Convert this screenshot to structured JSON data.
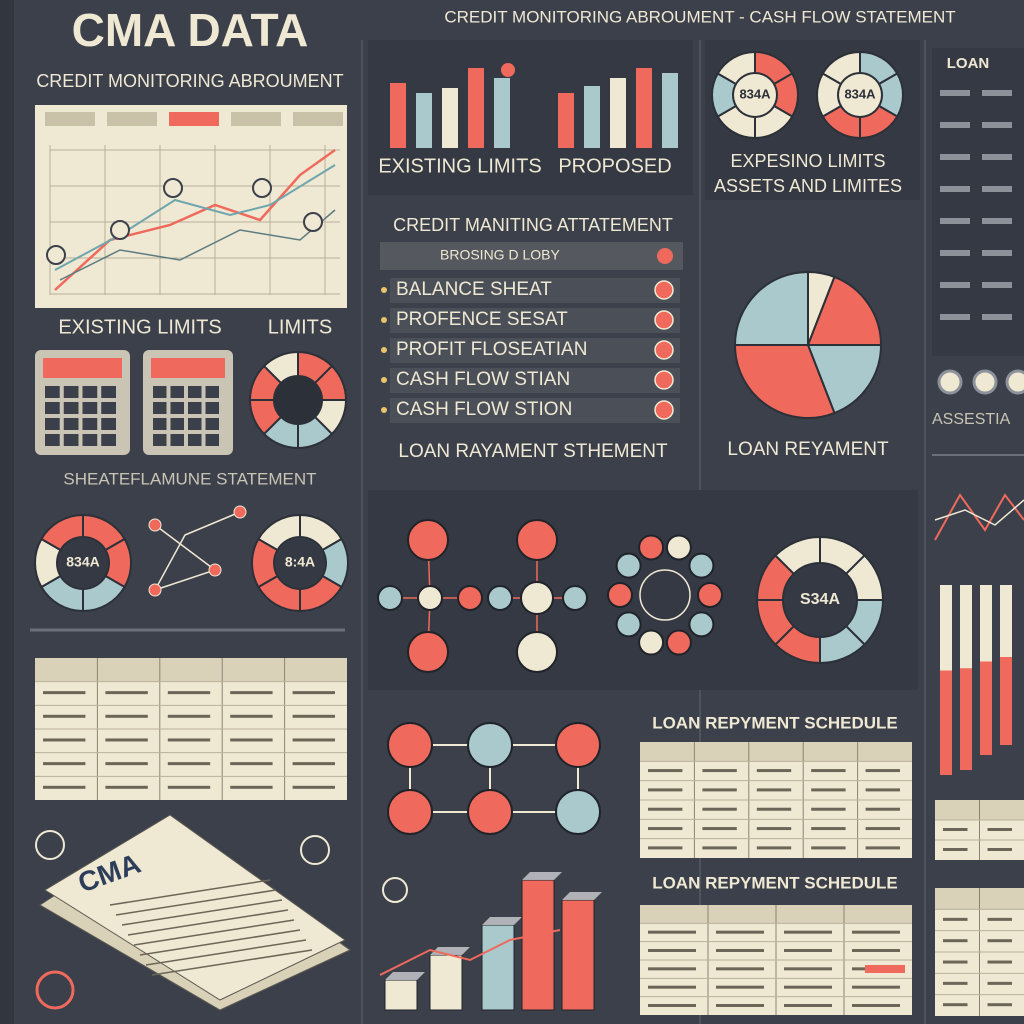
{
  "header": {
    "title": "CMA DATA",
    "subtitle": "CREDIT MONITORING ABROUMENT",
    "banner": "CREDIT MONITORING ABROUMENT - CASH FLOW STATEMENT"
  },
  "left": {
    "limit_labels": [
      "EXISTING LIMITS",
      "LIMITS"
    ],
    "statement_title": "SHEATEFLAMUNE STATEMENT",
    "donut_labels": [
      "834A",
      "8:4A"
    ],
    "document_label": "CMA"
  },
  "center": {
    "bar_labels": [
      "EXISTING LIMITS",
      "PROPOSED"
    ],
    "menu_title": "CREDIT MANITING ATTATEMENT",
    "menu_header": "BROSING D LOBY",
    "menu_items": [
      "BALANCE SHEAT",
      "PROFENCE SESAT",
      "PROFIT FLOSEATIAN",
      "CASH FLOW STIAN",
      "CASH FLOW STION"
    ],
    "loan_title": "LOAN RAYAMENT STHEMENT",
    "network_donut_label": "S34A"
  },
  "right": {
    "donut_labels": [
      "834A",
      "834A"
    ],
    "limits_title": "EXPESINO LIMITS",
    "assets_title": "ASSETS AND LIMITES",
    "pie_title": "LOAN REYAMENT",
    "schedule_titles": [
      "LOAN REPYMENT SCHEDULE",
      "LOAN REPYMENT SCHEDULE"
    ]
  },
  "far_right": {
    "loan_title": "LOAN",
    "assets_title": "ASSESTIA"
  }
}
